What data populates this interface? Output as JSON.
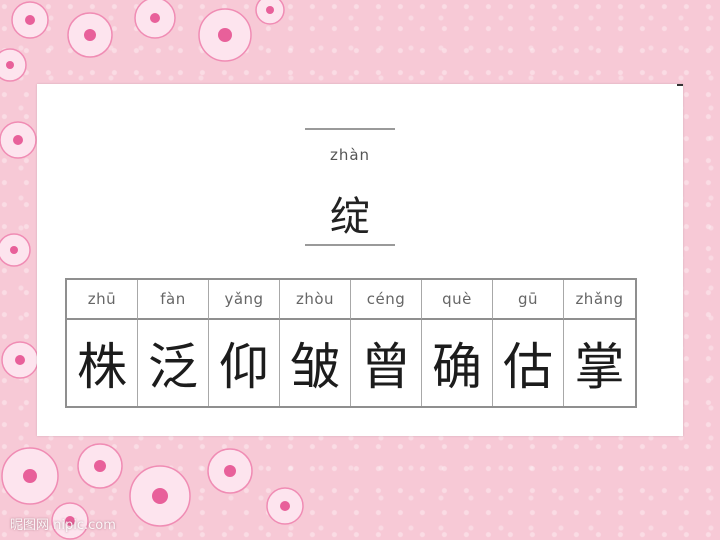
{
  "header": {
    "pinyin": "zhàn",
    "character": "绽"
  },
  "table": {
    "columns": [
      {
        "pinyin": "zhū",
        "character": "株"
      },
      {
        "pinyin": "fàn",
        "character": "泛"
      },
      {
        "pinyin": "yǎng",
        "character": "仰"
      },
      {
        "pinyin": "zhòu",
        "character": "皱"
      },
      {
        "pinyin": "céng",
        "character": "曾"
      },
      {
        "pinyin": "què",
        "character": "确"
      },
      {
        "pinyin": "gū",
        "character": "估"
      },
      {
        "pinyin": "zhǎng",
        "character": "掌"
      }
    ]
  },
  "watermark": "昵图网 nipic.com",
  "colors": {
    "background": "#f7c9d6",
    "flower_pink": "#f08cb4",
    "flower_light": "#fde4ee",
    "text": "#1c1c1c"
  }
}
